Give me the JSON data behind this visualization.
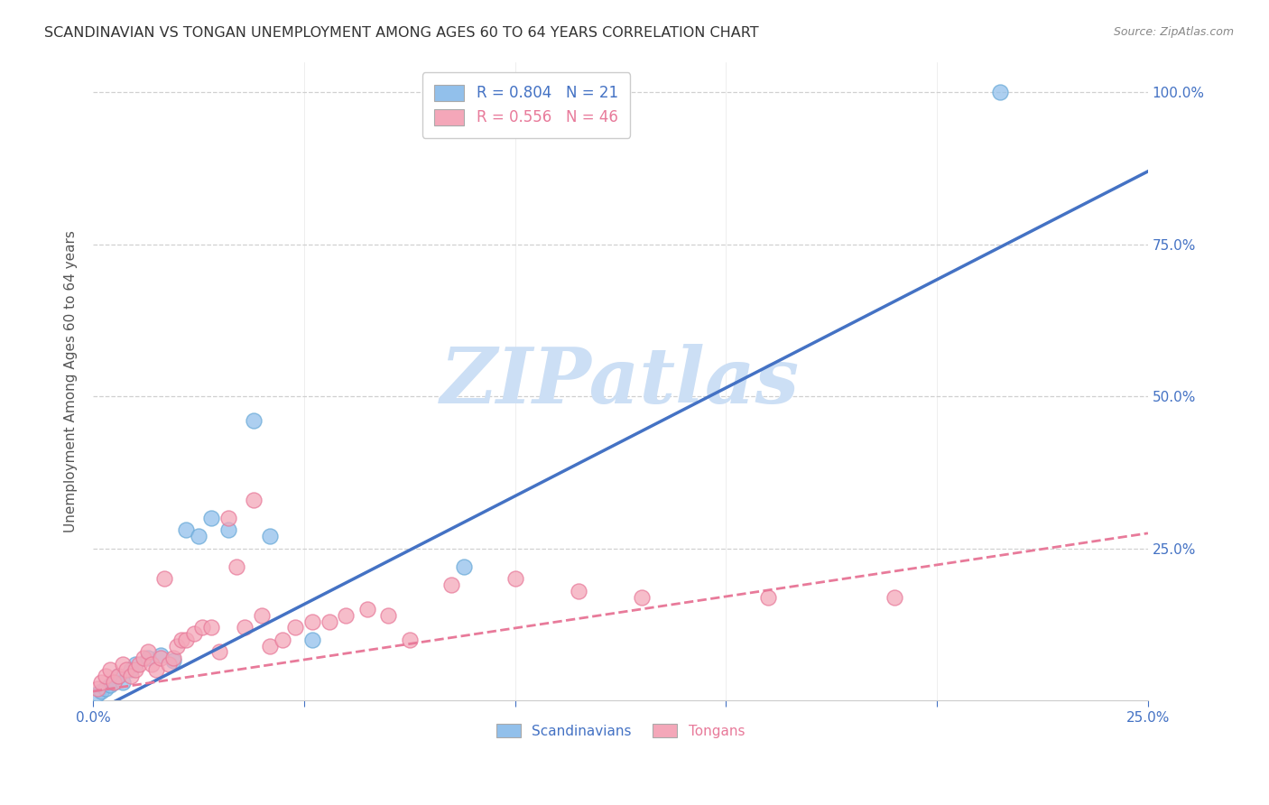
{
  "title": "SCANDINAVIAN VS TONGAN UNEMPLOYMENT AMONG AGES 60 TO 64 YEARS CORRELATION CHART",
  "source": "Source: ZipAtlas.com",
  "ylabel": "Unemployment Among Ages 60 to 64 years",
  "xlim": [
    0,
    0.25
  ],
  "ylim": [
    0,
    1.05
  ],
  "xticks": [
    0.0,
    0.05,
    0.1,
    0.15,
    0.2,
    0.25
  ],
  "xticklabels": [
    "0.0%",
    "",
    "",
    "",
    "",
    "25.0%"
  ],
  "yticks": [
    0.0,
    0.25,
    0.5,
    0.75,
    1.0
  ],
  "yticklabels": [
    "",
    "25.0%",
    "50.0%",
    "75.0%",
    "100.0%"
  ],
  "sc_x": [
    0.001,
    0.002,
    0.003,
    0.004,
    0.005,
    0.006,
    0.007,
    0.009,
    0.01,
    0.013,
    0.016,
    0.019,
    0.022,
    0.025,
    0.028,
    0.032,
    0.038,
    0.042,
    0.052,
    0.088,
    0.215
  ],
  "sc_y": [
    0.01,
    0.015,
    0.02,
    0.025,
    0.03,
    0.04,
    0.03,
    0.05,
    0.06,
    0.07,
    0.075,
    0.065,
    0.28,
    0.27,
    0.3,
    0.28,
    0.46,
    0.27,
    0.1,
    0.22,
    1.0
  ],
  "to_x": [
    0.001,
    0.002,
    0.003,
    0.004,
    0.005,
    0.006,
    0.007,
    0.008,
    0.009,
    0.01,
    0.011,
    0.012,
    0.013,
    0.014,
    0.015,
    0.016,
    0.017,
    0.018,
    0.019,
    0.02,
    0.021,
    0.022,
    0.024,
    0.026,
    0.028,
    0.03,
    0.032,
    0.034,
    0.036,
    0.038,
    0.04,
    0.042,
    0.045,
    0.048,
    0.052,
    0.056,
    0.06,
    0.065,
    0.07,
    0.075,
    0.085,
    0.1,
    0.115,
    0.13,
    0.16,
    0.19
  ],
  "to_y": [
    0.02,
    0.03,
    0.04,
    0.05,
    0.03,
    0.04,
    0.06,
    0.05,
    0.04,
    0.05,
    0.06,
    0.07,
    0.08,
    0.06,
    0.05,
    0.07,
    0.2,
    0.06,
    0.07,
    0.09,
    0.1,
    0.1,
    0.11,
    0.12,
    0.12,
    0.08,
    0.3,
    0.22,
    0.12,
    0.33,
    0.14,
    0.09,
    0.1,
    0.12,
    0.13,
    0.13,
    0.14,
    0.15,
    0.14,
    0.1,
    0.19,
    0.2,
    0.18,
    0.17,
    0.17,
    0.17
  ],
  "sc_color": "#92c0eb",
  "sc_edge_color": "#6aaad8",
  "to_color": "#f4a7b9",
  "to_edge_color": "#e87a9a",
  "sc_line_color": "#4472c4",
  "to_line_color": "#e87a9a",
  "sc_line_x0": 0.0,
  "sc_line_y0": -0.02,
  "sc_line_x1": 0.25,
  "sc_line_y1": 0.87,
  "to_line_x0": 0.0,
  "to_line_y0": 0.015,
  "to_line_x1": 0.25,
  "to_line_y1": 0.275,
  "sc_R": 0.804,
  "sc_N": 21,
  "to_R": 0.556,
  "to_N": 46,
  "title_fontsize": 11.5,
  "tick_fontsize": 11,
  "legend_fontsize": 12,
  "background_color": "#ffffff",
  "grid_color": "#d0d0d0",
  "axis_label_color": "#4472c4",
  "ylabel_color": "#555555",
  "watermark_text": "ZIPatlas",
  "watermark_color": "#ccdff5",
  "source_color": "#888888"
}
